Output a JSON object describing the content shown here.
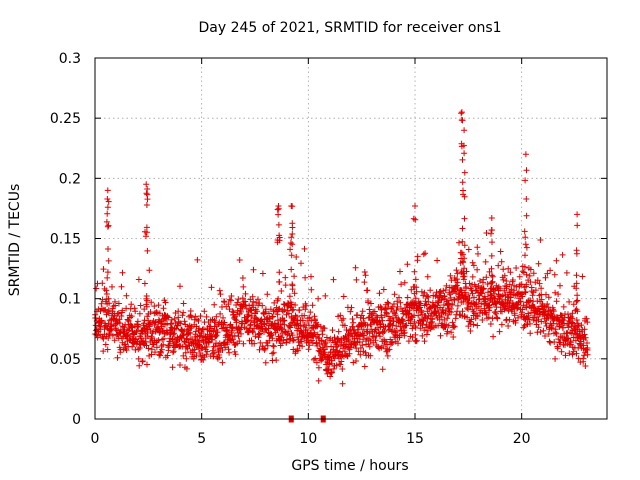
{
  "chart_data": {
    "type": "scatter",
    "title": "Day 245 of 2021, SRMTID for receiver ons1",
    "xlabel": "GPS time / hours",
    "ylabel": "SRMTID / TECUs",
    "xlim": [
      0,
      24
    ],
    "ylim": [
      0,
      0.3
    ],
    "x_ticks": [
      0,
      5,
      10,
      15,
      20
    ],
    "x_tick_labels": [
      "0",
      "5",
      "10",
      "15",
      "20"
    ],
    "y_ticks": [
      0,
      0.05,
      0.1,
      0.15,
      0.2,
      0.25,
      0.3
    ],
    "y_tick_labels": [
      "0",
      "0.05",
      "0.1",
      "0.15",
      "0.2",
      "0.25",
      "0.3"
    ],
    "grid": true,
    "marker": "plus",
    "color": "#e00000",
    "series": [
      {
        "name": "SRMTID",
        "x_start": 0.0,
        "x_end": 23.1,
        "mean_profile": [
          {
            "x": 0.0,
            "y": 0.085
          },
          {
            "x": 1.0,
            "y": 0.075
          },
          {
            "x": 2.0,
            "y": 0.07
          },
          {
            "x": 3.0,
            "y": 0.075
          },
          {
            "x": 4.0,
            "y": 0.068
          },
          {
            "x": 5.0,
            "y": 0.065
          },
          {
            "x": 6.0,
            "y": 0.072
          },
          {
            "x": 7.0,
            "y": 0.085
          },
          {
            "x": 8.0,
            "y": 0.075
          },
          {
            "x": 9.0,
            "y": 0.08
          },
          {
            "x": 10.0,
            "y": 0.075
          },
          {
            "x": 11.0,
            "y": 0.055
          },
          {
            "x": 12.0,
            "y": 0.065
          },
          {
            "x": 13.0,
            "y": 0.075
          },
          {
            "x": 14.0,
            "y": 0.078
          },
          {
            "x": 15.0,
            "y": 0.085
          },
          {
            "x": 16.0,
            "y": 0.09
          },
          {
            "x": 17.0,
            "y": 0.1
          },
          {
            "x": 18.0,
            "y": 0.098
          },
          {
            "x": 19.0,
            "y": 0.1
          },
          {
            "x": 20.0,
            "y": 0.098
          },
          {
            "x": 21.0,
            "y": 0.088
          },
          {
            "x": 22.0,
            "y": 0.075
          },
          {
            "x": 23.0,
            "y": 0.065
          }
        ],
        "spikes": [
          {
            "x": 0.6,
            "y": 0.19
          },
          {
            "x": 2.4,
            "y": 0.195
          },
          {
            "x": 8.6,
            "y": 0.177
          },
          {
            "x": 9.2,
            "y": 0.177
          },
          {
            "x": 15.0,
            "y": 0.177
          },
          {
            "x": 17.2,
            "y": 0.255
          },
          {
            "x": 17.3,
            "y": 0.24
          },
          {
            "x": 18.6,
            "y": 0.167
          },
          {
            "x": 20.2,
            "y": 0.22
          },
          {
            "x": 22.6,
            "y": 0.17
          }
        ],
        "zero_markers": [
          {
            "x": 9.2,
            "y": 0.0
          },
          {
            "x": 10.7,
            "y": 0.0
          }
        ]
      }
    ]
  }
}
